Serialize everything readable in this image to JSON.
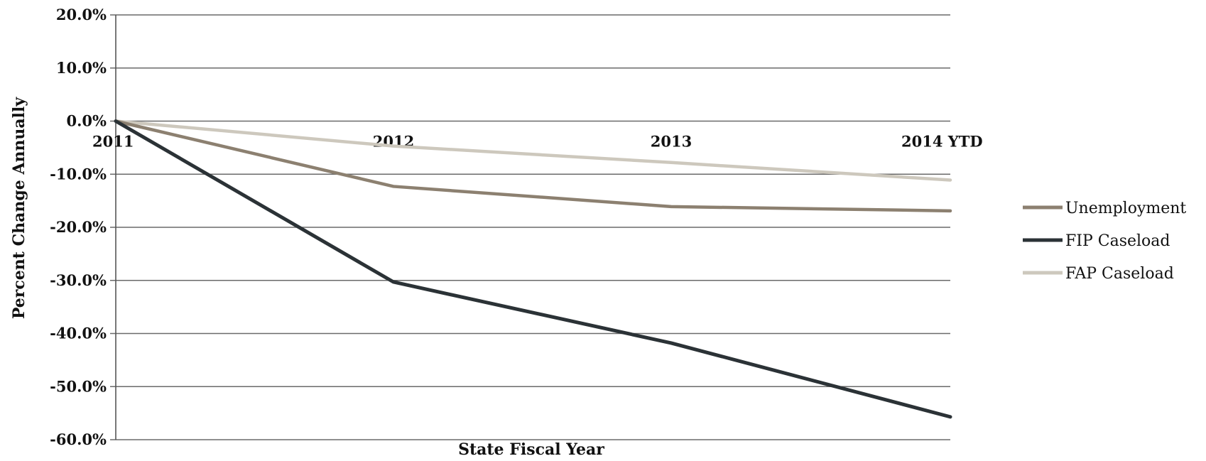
{
  "chart_data": {
    "type": "line",
    "xlabel": "State Fiscal Year",
    "ylabel": "Percent Change Annually",
    "categories": [
      "2011",
      "2012",
      "2013",
      "2014 YTD"
    ],
    "ylim": [
      -60,
      20
    ],
    "yticks": [
      20,
      10,
      0,
      -10,
      -20,
      -30,
      -40,
      -50,
      -60
    ],
    "ytick_labels": [
      "20.0%",
      "10.0%",
      "0.0%",
      "-10.0%",
      "-20.0%",
      "-30.0%",
      "-40.0%",
      "-50.0%",
      "-60.0%"
    ],
    "grid": true,
    "legend_position": "right",
    "series": [
      {
        "name": "Unemployment",
        "values": [
          0,
          -12.3,
          -16.1,
          -16.9
        ],
        "color": "#8c8070"
      },
      {
        "name": "FIP Caseload",
        "values": [
          0,
          -30.3,
          -41.8,
          -55.7
        ],
        "color": "#2b3236"
      },
      {
        "name": "FAP Caseload",
        "values": [
          0,
          -4.7,
          -7.8,
          -11.1
        ],
        "color": "#cdc8bd"
      }
    ]
  }
}
